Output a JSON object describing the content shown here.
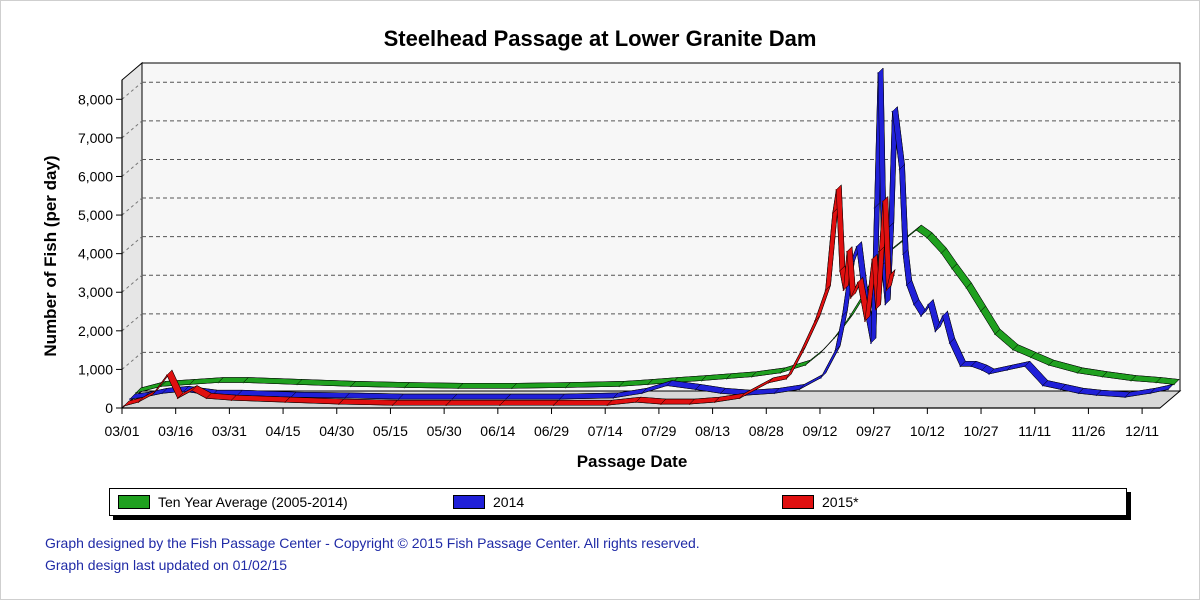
{
  "chart_data": {
    "type": "area",
    "title": "Steelhead Passage at Lower Granite Dam",
    "xlabel": "Passage Date",
    "ylabel": "Number of Fish (per day)",
    "ylim": [
      0,
      8500
    ],
    "yticks": [
      0,
      1000,
      2000,
      3000,
      4000,
      5000,
      6000,
      7000,
      8000
    ],
    "ytick_labels": [
      "0",
      "1,000",
      "2,000",
      "3,000",
      "4,000",
      "5,000",
      "6,000",
      "7,000",
      "8,000"
    ],
    "xtick_labels": [
      "03/01",
      "03/16",
      "03/31",
      "04/15",
      "04/30",
      "05/15",
      "05/30",
      "06/14",
      "06/29",
      "07/14",
      "07/29",
      "08/13",
      "08/28",
      "09/12",
      "09/27",
      "10/12",
      "10/27",
      "11/11",
      "11/26",
      "12/11"
    ],
    "grid": "horizontal-dashed",
    "legend_position": "bottom",
    "series": [
      {
        "name": "Ten Year Average (2005-2014)",
        "color": "#1fa01f",
        "x": [
          "03/01",
          "03/08",
          "03/16",
          "03/24",
          "03/31",
          "04/15",
          "04/30",
          "05/15",
          "05/30",
          "06/14",
          "06/29",
          "07/14",
          "07/22",
          "07/29",
          "08/06",
          "08/13",
          "08/20",
          "08/28",
          "09/04",
          "09/08",
          "09/12",
          "09/16",
          "09/20",
          "09/24",
          "09/27",
          "10/01",
          "10/05",
          "10/08",
          "10/12",
          "10/15",
          "10/19",
          "10/23",
          "10/27",
          "11/01",
          "11/06",
          "11/11",
          "11/19",
          "11/26",
          "12/04",
          "12/11",
          "12/16"
        ],
        "y": [
          80,
          250,
          300,
          350,
          350,
          300,
          250,
          220,
          200,
          200,
          220,
          250,
          300,
          350,
          400,
          450,
          500,
          600,
          800,
          1100,
          1500,
          2000,
          2600,
          3200,
          3700,
          4000,
          4300,
          4100,
          3700,
          3300,
          2800,
          2200,
          1600,
          1200,
          1000,
          800,
          600,
          500,
          400,
          350,
          300
        ]
      },
      {
        "name": "2014",
        "color": "#2020d8",
        "x": [
          "03/01",
          "03/05",
          "03/10",
          "03/16",
          "03/24",
          "03/31",
          "04/15",
          "04/30",
          "05/15",
          "05/30",
          "06/14",
          "06/29",
          "07/14",
          "07/22",
          "07/29",
          "08/06",
          "08/13",
          "08/20",
          "08/28",
          "09/04",
          "09/10",
          "09/14",
          "09/16",
          "09/18",
          "09/20",
          "09/22",
          "09/24",
          "09/25",
          "09/26",
          "09/27",
          "09/28",
          "09/29",
          "09/30",
          "10/02",
          "10/03",
          "10/04",
          "10/06",
          "10/08",
          "10/10",
          "10/12",
          "10/14",
          "10/16",
          "10/19",
          "10/22",
          "10/25",
          "10/27",
          "11/01",
          "11/06",
          "11/11",
          "11/16",
          "11/21",
          "11/26",
          "12/04",
          "12/11",
          "12/16"
        ],
        "y": [
          50,
          100,
          200,
          250,
          150,
          150,
          100,
          80,
          50,
          50,
          50,
          50,
          80,
          200,
          400,
          300,
          200,
          150,
          200,
          300,
          600,
          1300,
          2200,
          3500,
          4000,
          2500,
          1500,
          5000,
          8500,
          3500,
          2500,
          4500,
          7500,
          6000,
          3800,
          3000,
          2500,
          2200,
          2500,
          1800,
          2200,
          1500,
          900,
          900,
          800,
          700,
          800,
          900,
          400,
          300,
          200,
          150,
          100,
          200,
          300
        ]
      },
      {
        "name": "2015*",
        "color": "#e01010",
        "x": [
          "03/01",
          "03/05",
          "03/09",
          "03/13",
          "03/16",
          "03/20",
          "03/24",
          "03/31",
          "04/15",
          "04/30",
          "05/15",
          "05/30",
          "06/14",
          "06/29",
          "07/14",
          "07/22",
          "07/29",
          "08/06",
          "08/13",
          "08/20",
          "08/28",
          "09/02",
          "09/06",
          "09/10",
          "09/13",
          "09/15",
          "09/16",
          "09/17",
          "09/18",
          "09/19",
          "09/20",
          "09/22",
          "09/24",
          "09/26",
          "09/27",
          "09/28",
          "09/29",
          "09/30",
          "10/01"
        ],
        "y": [
          0,
          100,
          300,
          800,
          200,
          400,
          200,
          150,
          100,
          50,
          20,
          20,
          20,
          20,
          20,
          100,
          50,
          50,
          100,
          200,
          600,
          700,
          1400,
          2200,
          3000,
          5000,
          5600,
          3500,
          3000,
          4000,
          2800,
          3200,
          2200,
          3800,
          2500,
          4000,
          5300,
          3000,
          3400
        ]
      }
    ]
  },
  "legend": {
    "items": [
      {
        "label": "Ten Year Average (2005-2014)",
        "color": "#1fa01f"
      },
      {
        "label": "2014",
        "color": "#2020d8"
      },
      {
        "label": "2015*",
        "color": "#e01010"
      }
    ]
  },
  "footer": {
    "line1": "Graph designed by the Fish Passage Center - Copyright © 2015 Fish Passage Center. All rights reserved.",
    "line2": "Graph design last updated on 01/02/15"
  }
}
